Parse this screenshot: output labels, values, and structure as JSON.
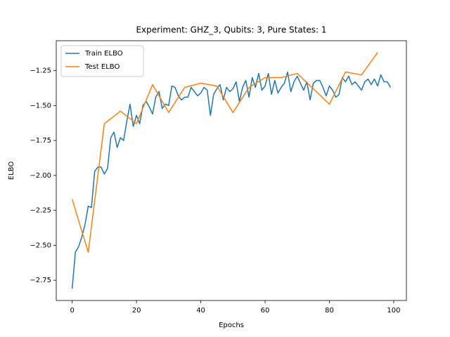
{
  "chart_data": {
    "type": "line",
    "title": "Experiment: GHZ_3, Qubits: 3, Pure States: 1",
    "x_label": "Epochs",
    "y_label": "ELBO",
    "legend": "upper left",
    "xlim": [
      -4.95,
      103.95
    ],
    "xticks": [
      0,
      20,
      40,
      60,
      80,
      100
    ],
    "ylim": [
      -2.895,
      -1.036
    ],
    "yticks": [
      {
        "value": -2.75,
        "label": "−2.75"
      },
      {
        "value": -2.5,
        "label": "−2.50"
      },
      {
        "value": -2.25,
        "label": "−2.25"
      },
      {
        "value": -2.0,
        "label": "−2.00"
      },
      {
        "value": -1.75,
        "label": "−1.75"
      },
      {
        "value": -1.5,
        "label": "−1.50"
      },
      {
        "value": -1.25,
        "label": "−1.25"
      }
    ],
    "series": [
      {
        "name": "Train ELBO",
        "color": "#1f77b4",
        "x": [
          0,
          1,
          2,
          3,
          4,
          5,
          6,
          7,
          8,
          9,
          10,
          11,
          12,
          13,
          14,
          15,
          16,
          17,
          18,
          19,
          20,
          21,
          22,
          23,
          24,
          25,
          26,
          27,
          28,
          29,
          30,
          31,
          32,
          33,
          34,
          35,
          36,
          37,
          38,
          39,
          40,
          41,
          42,
          43,
          44,
          45,
          46,
          47,
          48,
          49,
          50,
          51,
          52,
          53,
          54,
          55,
          56,
          57,
          58,
          59,
          60,
          61,
          62,
          63,
          64,
          65,
          66,
          67,
          68,
          69,
          70,
          71,
          72,
          73,
          74,
          75,
          76,
          77,
          78,
          79,
          80,
          81,
          82,
          83,
          84,
          85,
          86,
          87,
          88,
          89,
          90,
          91,
          92,
          93,
          94,
          95,
          96,
          97,
          98,
          99
        ],
        "values": [
          -2.81,
          -2.55,
          -2.51,
          -2.44,
          -2.35,
          -2.22,
          -2.23,
          -1.97,
          -1.94,
          -1.94,
          -1.99,
          -1.95,
          -1.73,
          -1.69,
          -1.8,
          -1.73,
          -1.75,
          -1.61,
          -1.49,
          -1.65,
          -1.57,
          -1.63,
          -1.5,
          -1.47,
          -1.51,
          -1.56,
          -1.44,
          -1.4,
          -1.52,
          -1.49,
          -1.5,
          -1.36,
          -1.37,
          -1.43,
          -1.46,
          -1.44,
          -1.44,
          -1.37,
          -1.4,
          -1.43,
          -1.41,
          -1.37,
          -1.39,
          -1.57,
          -1.42,
          -1.38,
          -1.35,
          -1.46,
          -1.37,
          -1.4,
          -1.38,
          -1.33,
          -1.47,
          -1.37,
          -1.32,
          -1.44,
          -1.3,
          -1.37,
          -1.27,
          -1.39,
          -1.36,
          -1.27,
          -1.42,
          -1.32,
          -1.41,
          -1.37,
          -1.34,
          -1.26,
          -1.4,
          -1.33,
          -1.29,
          -1.34,
          -1.39,
          -1.33,
          -1.46,
          -1.34,
          -1.32,
          -1.32,
          -1.37,
          -1.43,
          -1.36,
          -1.39,
          -1.44,
          -1.42,
          -1.3,
          -1.33,
          -1.29,
          -1.35,
          -1.33,
          -1.36,
          -1.39,
          -1.33,
          -1.31,
          -1.35,
          -1.31,
          -1.36,
          -1.28,
          -1.33,
          -1.33,
          -1.37
        ]
      },
      {
        "name": "Test ELBO",
        "color": "#ff7f0e",
        "x": [
          0,
          5,
          10,
          15,
          20,
          25,
          30,
          35,
          40,
          45,
          50,
          55,
          60,
          65,
          70,
          75,
          80,
          85,
          90,
          95
        ],
        "values": [
          -2.17,
          -2.55,
          -1.63,
          -1.54,
          -1.63,
          -1.35,
          -1.55,
          -1.37,
          -1.34,
          -1.36,
          -1.55,
          -1.37,
          -1.3,
          -1.3,
          -1.27,
          -1.38,
          -1.49,
          -1.26,
          -1.28,
          -1.12
        ]
      }
    ]
  }
}
